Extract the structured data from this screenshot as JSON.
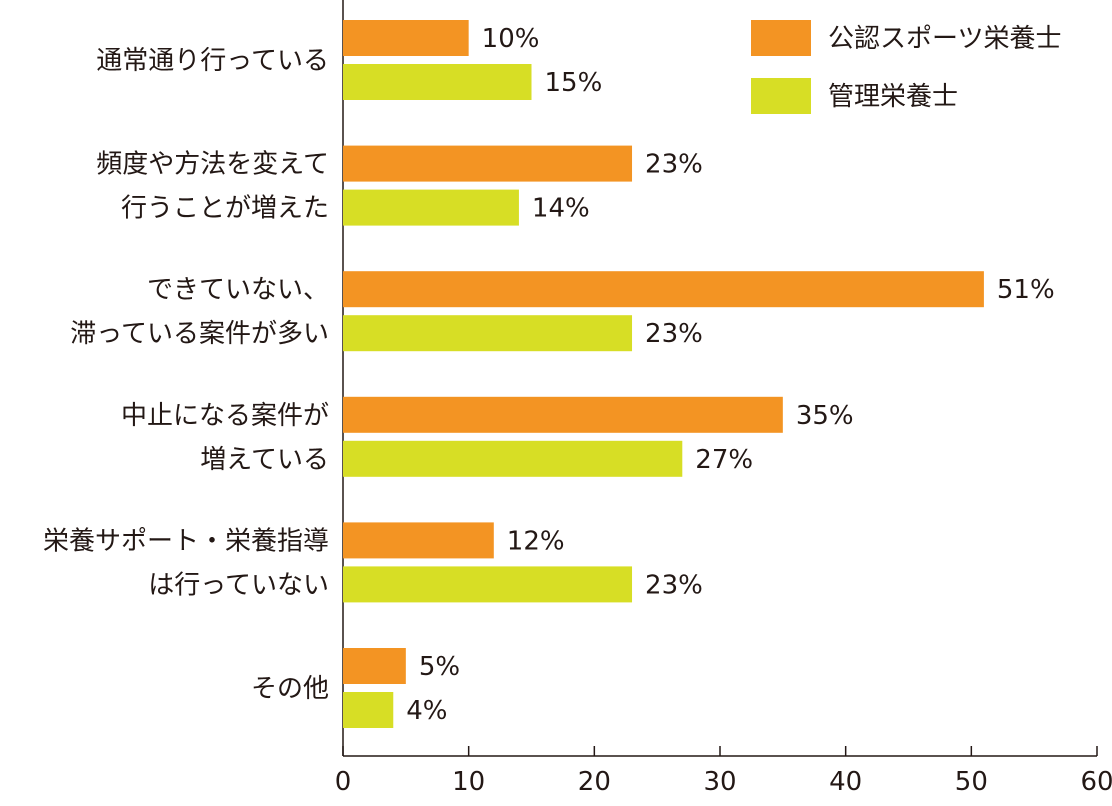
{
  "chart_data": {
    "type": "bar",
    "orientation": "horizontal",
    "categories": [
      [
        "通常通り行っている"
      ],
      [
        "頻度や方法を変えて",
        "行うことが増えた"
      ],
      [
        "できていない、",
        "滞っている案件が多い"
      ],
      [
        "中止になる案件が",
        "増えている"
      ],
      [
        "栄養サポート・栄養指導",
        "は行っていない"
      ],
      [
        "その他"
      ]
    ],
    "series": [
      {
        "name": "公認スポーツ栄養士",
        "color": "#f39423",
        "values": [
          10,
          23,
          51,
          35,
          12,
          5
        ],
        "labels": [
          "10%",
          "23%",
          "51%",
          "35%",
          "12%",
          "5%"
        ]
      },
      {
        "name": "管理栄養士",
        "color": "#d7de25",
        "values": [
          15,
          14,
          23,
          27,
          23,
          4
        ],
        "labels": [
          "15%",
          "14%",
          "23%",
          "27%",
          "23%",
          "4%"
        ]
      }
    ],
    "xlim": [
      0,
      60
    ],
    "xticks": [
      "0",
      "10",
      "20",
      "30",
      "40",
      "50",
      "60"
    ],
    "title": "",
    "xlabel": "",
    "ylabel": "",
    "grid": false,
    "legend_position": "top-right"
  }
}
